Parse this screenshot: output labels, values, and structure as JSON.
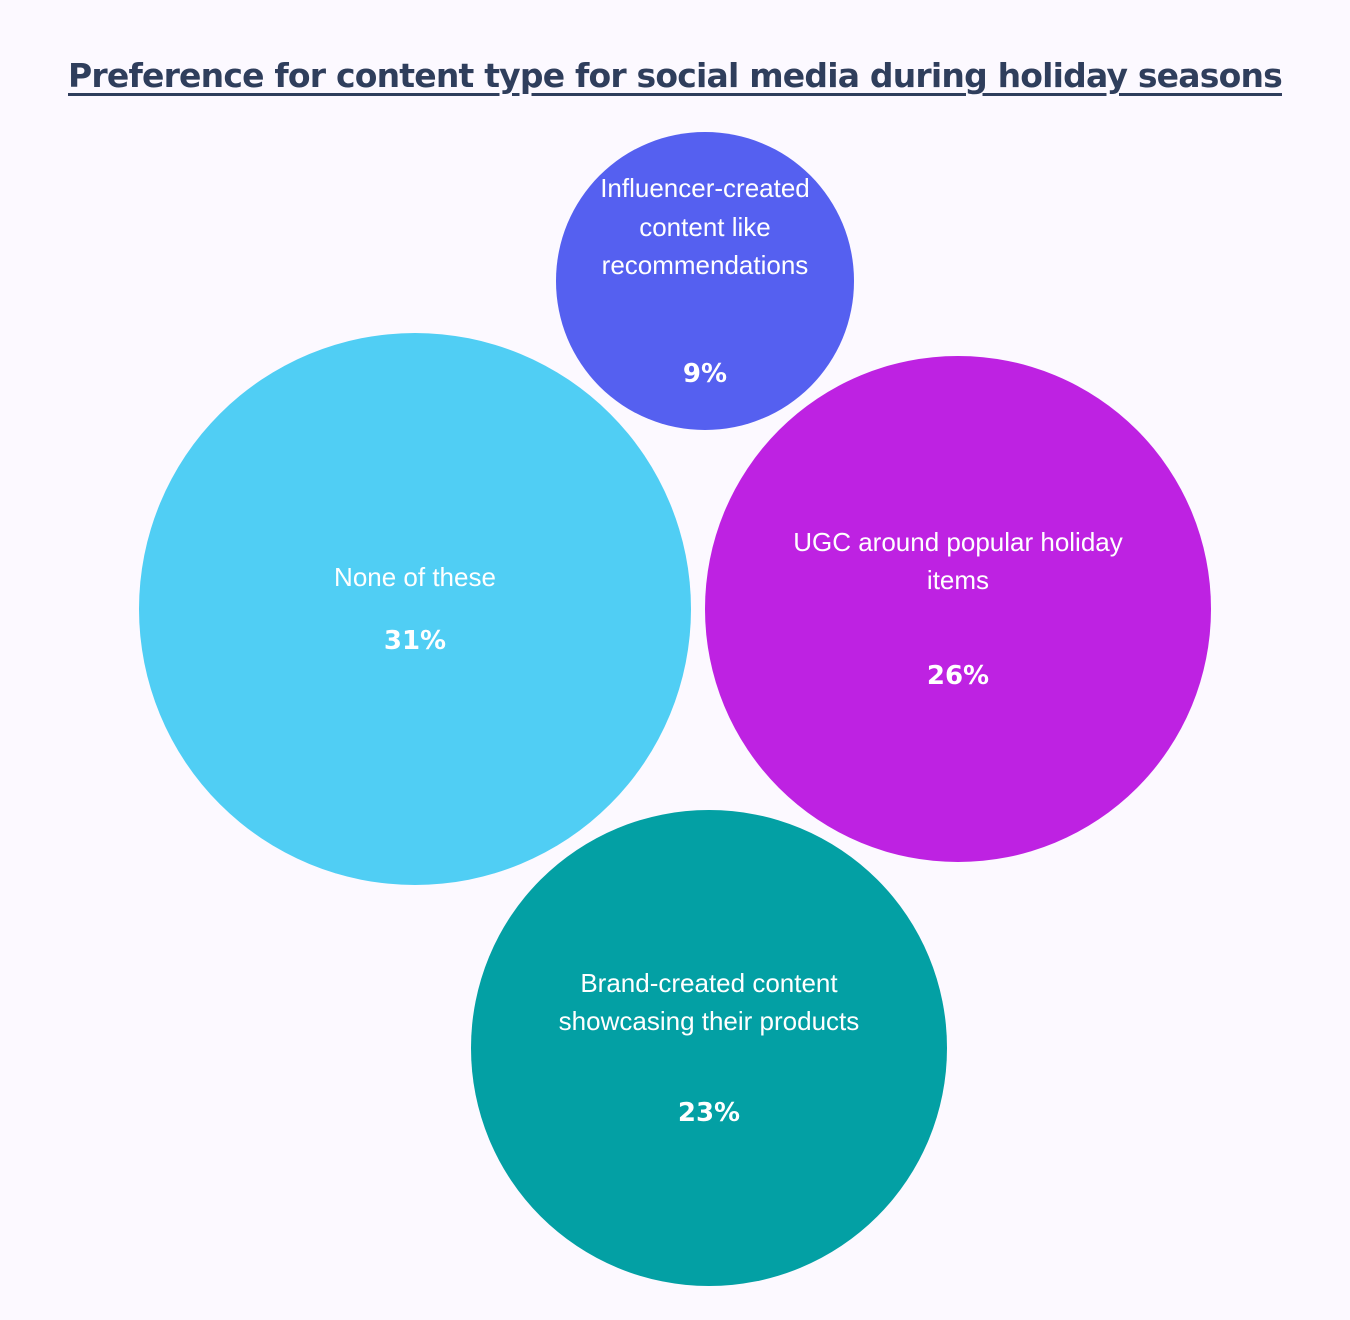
{
  "chart_data": {
    "type": "bubble",
    "title": "Preference for content type for social media during holiday seasons",
    "unit": "%",
    "series": [
      {
        "label": "Influencer-created content like recommendations",
        "lines": [
          "Influencer-created",
          "content like",
          "recommendations"
        ],
        "value": 9,
        "value_label": "9%",
        "color": "#5560f0"
      },
      {
        "label": "None of these",
        "lines": [
          "None of these"
        ],
        "value": 31,
        "value_label": "31%",
        "color": "#50cef4"
      },
      {
        "label": "UGC around popular holiday items",
        "lines": [
          "UGC around popular holiday",
          "items"
        ],
        "value": 26,
        "value_label": "26%",
        "color": "#be22e2"
      },
      {
        "label": "Brand-created content showcasing their products",
        "lines": [
          "Brand-created content",
          "showcasing their products"
        ],
        "value": 23,
        "value_label": "23%",
        "color": "#03a0a4"
      }
    ]
  }
}
